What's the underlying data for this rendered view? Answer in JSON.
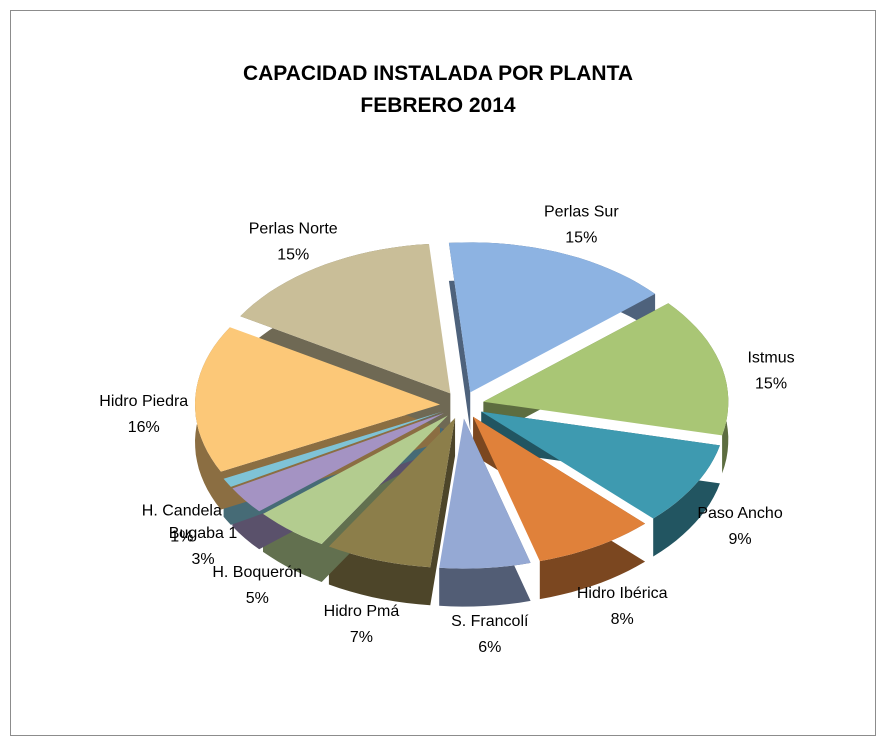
{
  "chart_data": {
    "type": "pie3d",
    "title": "CAPACIDAD INSTALADA  POR PLANTA",
    "subtitle": "FEBRERO  2014",
    "categories": [
      "Perlas Sur",
      "Istmus",
      "Paso Ancho",
      "Hidro Ibérica",
      "S. Francolí",
      "Hidro Pmá",
      "H. Boquerón",
      "Bugaba 1",
      "H. Candela",
      "Hidro Piedra",
      "Perlas Norte"
    ],
    "values": [
      15,
      15,
      9,
      8,
      6,
      7,
      5,
      3,
      1,
      16,
      15
    ],
    "value_labels": [
      "15%",
      "15%",
      "9%",
      "8%",
      "6%",
      "7%",
      "5%",
      "3%",
      "1%",
      "16%",
      "15%"
    ],
    "colors": [
      "#8db3e2",
      "#a9c675",
      "#3e9ab0",
      "#e0813a",
      "#95a9d4",
      "#8c7e4a",
      "#b3cc8f",
      "#a493c3",
      "#7fc3d6",
      "#fcc878",
      "#c9be98"
    ]
  }
}
